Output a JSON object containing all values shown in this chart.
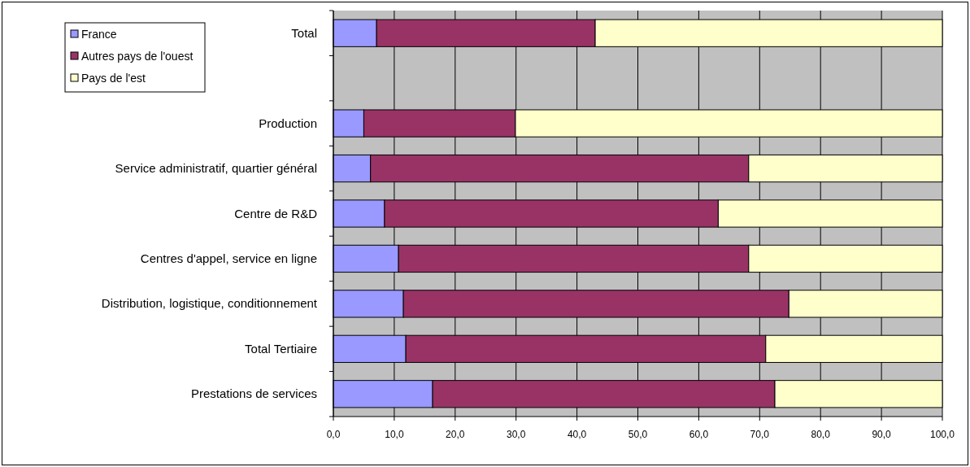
{
  "chart_data": {
    "type": "bar",
    "orientation": "horizontal",
    "stacked": true,
    "categories": [
      "Total",
      null,
      "Production",
      "Service administratif, quartier général",
      "Centre de R&D",
      "Centres d'appel, service en ligne",
      "Distribution, logistique, conditionnement",
      "Total Tertiaire",
      "Prestations de services"
    ],
    "series": [
      {
        "name": "France",
        "color": "#9999ff",
        "values": [
          7.1,
          null,
          5.0,
          6.1,
          8.4,
          10.7,
          11.5,
          11.9,
          16.3
        ]
      },
      {
        "name": "Autres pays de l'ouest",
        "color": "#993366",
        "values": [
          35.9,
          null,
          24.9,
          62.1,
          54.8,
          57.5,
          63.3,
          59.1,
          56.2
        ]
      },
      {
        "name": "Pays de l'est",
        "color": "#ffffcc",
        "values": [
          57.0,
          null,
          70.1,
          31.8,
          36.8,
          31.8,
          25.2,
          29.0,
          27.5
        ]
      }
    ],
    "xlim": [
      0,
      100
    ],
    "xticks": [
      {
        "value": 0,
        "label": "0,0"
      },
      {
        "value": 10,
        "label": "10,0"
      },
      {
        "value": 20,
        "label": "20,0"
      },
      {
        "value": 30,
        "label": "30,0"
      },
      {
        "value": 40,
        "label": "40,0"
      },
      {
        "value": 50,
        "label": "50,0"
      },
      {
        "value": 60,
        "label": "60,0"
      },
      {
        "value": 70,
        "label": "70,0"
      },
      {
        "value": 80,
        "label": "80,0"
      },
      {
        "value": 90,
        "label": "90,0"
      },
      {
        "value": 100,
        "label": "100,0"
      }
    ],
    "grid": "x",
    "legend": "top left"
  }
}
